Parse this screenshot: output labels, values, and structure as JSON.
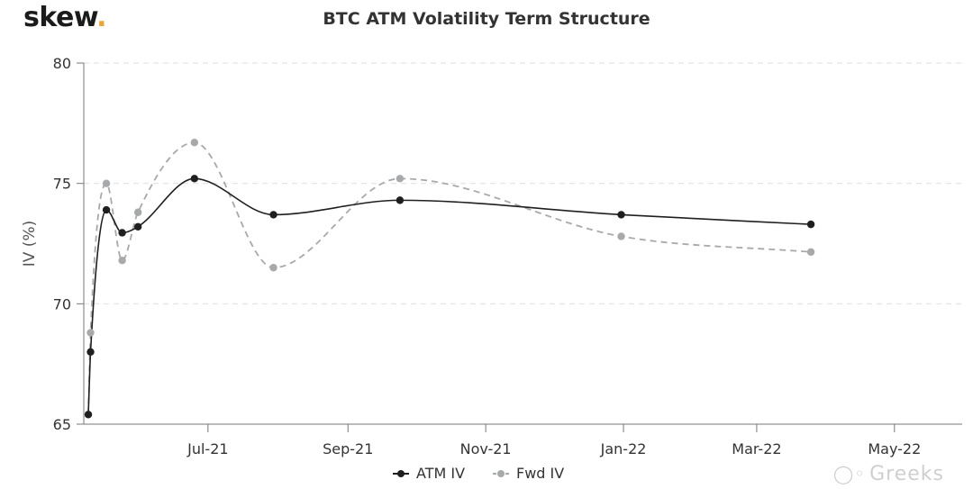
{
  "brand": {
    "logo_text": "skew",
    "logo_dot": "."
  },
  "watermark": {
    "icon": "wechat-icon",
    "text": "Greeks"
  },
  "chart_data": {
    "type": "line",
    "title": "BTC ATM Volatility Term Structure",
    "xlabel": "",
    "ylabel": "IV (%)",
    "ylim": [
      65,
      80
    ],
    "yticks": [
      65,
      70,
      75,
      80
    ],
    "xlim": [
      "2021-05-07",
      "2022-05-31"
    ],
    "xticks": [
      {
        "date": "2021-07-01",
        "label": "Jul-21"
      },
      {
        "date": "2021-09-01",
        "label": "Sep-21"
      },
      {
        "date": "2021-11-01",
        "label": "Nov-21"
      },
      {
        "date": "2022-01-01",
        "label": "Jan-22"
      },
      {
        "date": "2022-03-01",
        "label": "Mar-22"
      },
      {
        "date": "2022-05-01",
        "label": "May-22"
      }
    ],
    "grid": {
      "horizontal": true,
      "vertical": false
    },
    "legend_position": "bottom-center",
    "series": [
      {
        "name": "ATM IV",
        "color": "#1f1f1f",
        "dashed": false,
        "points": [
          {
            "x": "2021-05-09",
            "y": 65.4
          },
          {
            "x": "2021-05-10",
            "y": 68.0
          },
          {
            "x": "2021-05-17",
            "y": 73.9
          },
          {
            "x": "2021-05-24",
            "y": 72.95
          },
          {
            "x": "2021-05-31",
            "y": 73.2
          },
          {
            "x": "2021-06-25",
            "y": 75.2
          },
          {
            "x": "2021-07-30",
            "y": 73.7
          },
          {
            "x": "2021-09-24",
            "y": 74.3
          },
          {
            "x": "2021-12-31",
            "y": 73.7
          },
          {
            "x": "2022-03-25",
            "y": 73.3
          }
        ]
      },
      {
        "name": "Fwd IV",
        "color": "#a7a9ab",
        "dashed": true,
        "points": [
          {
            "x": "2021-05-09",
            "y": 65.4
          },
          {
            "x": "2021-05-10",
            "y": 68.8
          },
          {
            "x": "2021-05-17",
            "y": 75.0
          },
          {
            "x": "2021-05-24",
            "y": 71.8
          },
          {
            "x": "2021-05-31",
            "y": 73.8
          },
          {
            "x": "2021-06-25",
            "y": 76.7
          },
          {
            "x": "2021-07-30",
            "y": 71.5
          },
          {
            "x": "2021-09-24",
            "y": 75.2
          },
          {
            "x": "2021-12-31",
            "y": 72.8
          },
          {
            "x": "2022-03-25",
            "y": 72.15
          }
        ]
      }
    ]
  }
}
